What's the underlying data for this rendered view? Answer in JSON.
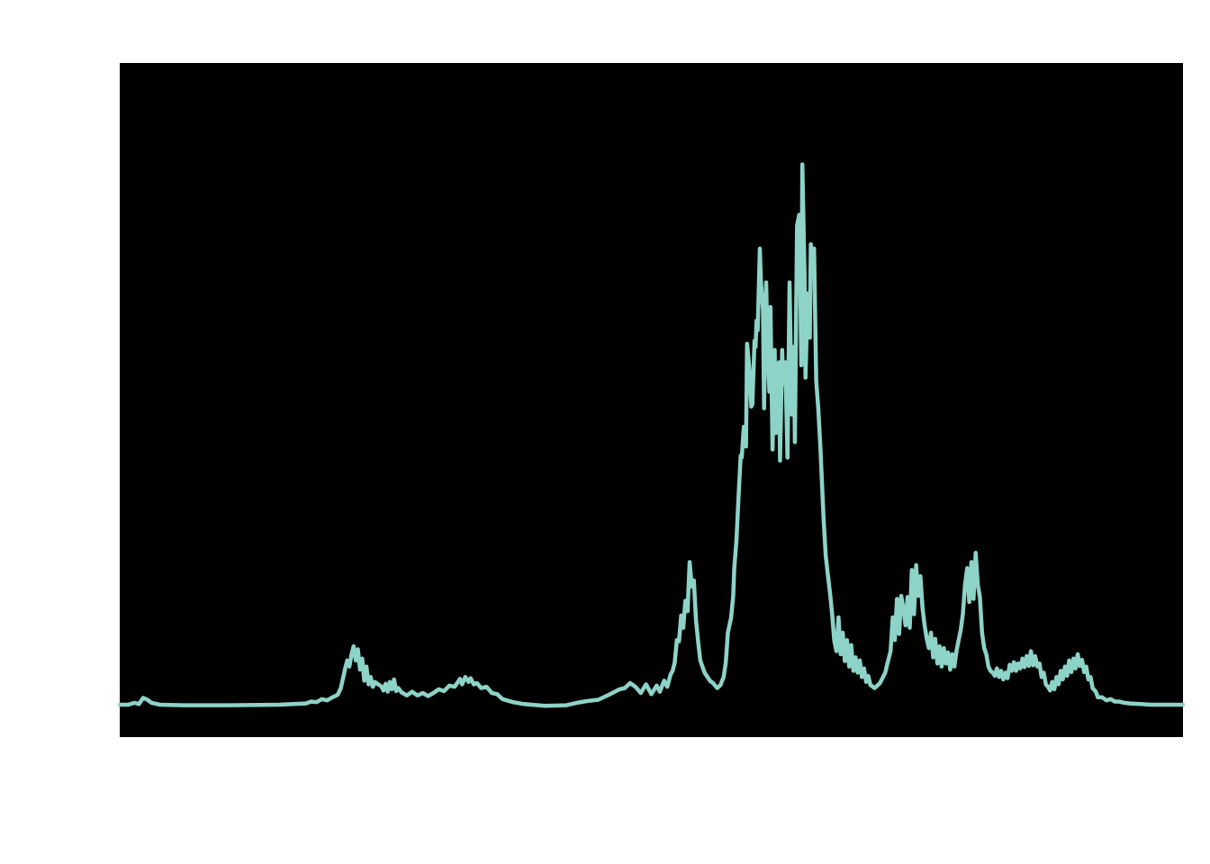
{
  "chart_data": {
    "type": "line",
    "title": "",
    "xlabel": "",
    "ylabel": "",
    "grid": false,
    "legend": "none",
    "colors": {
      "page_background": "#ffffff",
      "plot_background": "#000000",
      "line": "#8dd3c7"
    },
    "xlim": [
      0,
      1000
    ],
    "ylim": [
      0,
      1000
    ],
    "series": [
      {
        "points": [
          [
            0,
            3
          ],
          [
            8,
            3
          ],
          [
            14,
            6
          ],
          [
            18,
            4
          ],
          [
            22,
            14
          ],
          [
            26,
            11
          ],
          [
            30,
            6
          ],
          [
            38,
            3
          ],
          [
            60,
            2
          ],
          [
            100,
            2
          ],
          [
            150,
            3
          ],
          [
            175,
            5
          ],
          [
            180,
            8
          ],
          [
            185,
            7
          ],
          [
            190,
            12
          ],
          [
            195,
            10
          ],
          [
            200,
            15
          ],
          [
            205,
            19
          ],
          [
            208,
            30
          ],
          [
            210,
            46
          ],
          [
            212,
            62
          ],
          [
            214,
            75
          ],
          [
            216,
            65
          ],
          [
            218,
            85
          ],
          [
            220,
            98
          ],
          [
            222,
            75
          ],
          [
            224,
            93
          ],
          [
            226,
            60
          ],
          [
            228,
            78
          ],
          [
            230,
            42
          ],
          [
            232,
            65
          ],
          [
            234,
            36
          ],
          [
            236,
            48
          ],
          [
            238,
            32
          ],
          [
            240,
            40
          ],
          [
            243,
            36
          ],
          [
            246,
            33
          ],
          [
            248,
            26
          ],
          [
            250,
            37
          ],
          [
            252,
            24
          ],
          [
            254,
            40
          ],
          [
            256,
            28
          ],
          [
            258,
            44
          ],
          [
            260,
            25
          ],
          [
            262,
            30
          ],
          [
            265,
            23
          ],
          [
            270,
            18
          ],
          [
            275,
            24
          ],
          [
            280,
            18
          ],
          [
            285,
            22
          ],
          [
            290,
            17
          ],
          [
            295,
            22
          ],
          [
            300,
            28
          ],
          [
            305,
            25
          ],
          [
            310,
            34
          ],
          [
            315,
            32
          ],
          [
            320,
            45
          ],
          [
            322,
            36
          ],
          [
            325,
            48
          ],
          [
            328,
            40
          ],
          [
            330,
            46
          ],
          [
            333,
            36
          ],
          [
            336,
            38
          ],
          [
            340,
            30
          ],
          [
            345,
            32
          ],
          [
            350,
            22
          ],
          [
            355,
            20
          ],
          [
            360,
            12
          ],
          [
            370,
            7
          ],
          [
            380,
            4
          ],
          [
            400,
            1
          ],
          [
            420,
            2
          ],
          [
            430,
            6
          ],
          [
            440,
            9
          ],
          [
            450,
            11
          ],
          [
            460,
            19
          ],
          [
            470,
            28
          ],
          [
            475,
            30
          ],
          [
            480,
            38
          ],
          [
            485,
            32
          ],
          [
            490,
            22
          ],
          [
            495,
            36
          ],
          [
            500,
            20
          ],
          [
            505,
            34
          ],
          [
            508,
            24
          ],
          [
            512,
            42
          ],
          [
            515,
            32
          ],
          [
            518,
            52
          ],
          [
            520,
            58
          ],
          [
            522,
            72
          ],
          [
            524,
            108
          ],
          [
            526,
            106
          ],
          [
            528,
            148
          ],
          [
            530,
            128
          ],
          [
            532,
            172
          ],
          [
            534,
            155
          ],
          [
            536,
            235
          ],
          [
            538,
            195
          ],
          [
            540,
            205
          ],
          [
            542,
            140
          ],
          [
            544,
            105
          ],
          [
            546,
            75
          ],
          [
            550,
            55
          ],
          [
            555,
            42
          ],
          [
            558,
            38
          ],
          [
            562,
            30
          ],
          [
            565,
            35
          ],
          [
            568,
            48
          ],
          [
            570,
            72
          ],
          [
            572,
            120
          ],
          [
            575,
            145
          ],
          [
            577,
            180
          ],
          [
            578,
            225
          ],
          [
            580,
            270
          ],
          [
            582,
            340
          ],
          [
            584,
            408
          ],
          [
            585,
            405
          ],
          [
            587,
            455
          ],
          [
            589,
            423
          ],
          [
            590,
            590
          ],
          [
            592,
            552
          ],
          [
            594,
            488
          ],
          [
            595,
            492
          ],
          [
            597,
            595
          ],
          [
            598,
            585
          ],
          [
            599,
            628
          ],
          [
            600,
            612
          ],
          [
            602,
            745
          ],
          [
            603,
            695
          ],
          [
            605,
            645
          ],
          [
            606,
            485
          ],
          [
            608,
            690
          ],
          [
            609,
            610
          ],
          [
            611,
            512
          ],
          [
            612,
            650
          ],
          [
            614,
            418
          ],
          [
            616,
            580
          ],
          [
            617,
            445
          ],
          [
            620,
            560
          ],
          [
            621,
            400
          ],
          [
            623,
            580
          ],
          [
            624,
            525
          ],
          [
            626,
            560
          ],
          [
            628,
            405
          ],
          [
            630,
            690
          ],
          [
            632,
            475
          ],
          [
            634,
            585
          ],
          [
            635,
            430
          ],
          [
            637,
            782
          ],
          [
            639,
            800
          ],
          [
            640,
            710
          ],
          [
            641,
            555
          ],
          [
            642,
            882
          ],
          [
            644,
            702
          ],
          [
            645,
            535
          ],
          [
            647,
            672
          ],
          [
            649,
            600
          ],
          [
            650,
            752
          ],
          [
            652,
            702
          ],
          [
            653,
            745
          ],
          [
            655,
            530
          ],
          [
            657,
            485
          ],
          [
            659,
            420
          ],
          [
            662,
            305
          ],
          [
            664,
            245
          ],
          [
            666,
            215
          ],
          [
            668,
            185
          ],
          [
            670,
            150
          ],
          [
            672,
            108
          ],
          [
            674,
            90
          ],
          [
            676,
            145
          ],
          [
            678,
            85
          ],
          [
            680,
            120
          ],
          [
            682,
            74
          ],
          [
            684,
            108
          ],
          [
            686,
            65
          ],
          [
            688,
            100
          ],
          [
            690,
            58
          ],
          [
            692,
            80
          ],
          [
            694,
            55
          ],
          [
            696,
            75
          ],
          [
            698,
            48
          ],
          [
            700,
            62
          ],
          [
            702,
            40
          ],
          [
            704,
            50
          ],
          [
            706,
            35
          ],
          [
            710,
            30
          ],
          [
            715,
            38
          ],
          [
            720,
            55
          ],
          [
            722,
            70
          ],
          [
            725,
            90
          ],
          [
            727,
            145
          ],
          [
            729,
            108
          ],
          [
            731,
            175
          ],
          [
            733,
            118
          ],
          [
            735,
            180
          ],
          [
            737,
            160
          ],
          [
            739,
            132
          ],
          [
            741,
            178
          ],
          [
            743,
            128
          ],
          [
            745,
            222
          ],
          [
            747,
            150
          ],
          [
            749,
            230
          ],
          [
            751,
            180
          ],
          [
            753,
            212
          ],
          [
            755,
            160
          ],
          [
            757,
            132
          ],
          [
            759,
            110
          ],
          [
            761,
            95
          ],
          [
            763,
            120
          ],
          [
            765,
            80
          ],
          [
            767,
            110
          ],
          [
            769,
            70
          ],
          [
            771,
            98
          ],
          [
            773,
            65
          ],
          [
            775,
            95
          ],
          [
            777,
            70
          ],
          [
            779,
            88
          ],
          [
            781,
            60
          ],
          [
            783,
            85
          ],
          [
            785,
            65
          ],
          [
            787,
            90
          ],
          [
            789,
            108
          ],
          [
            791,
            125
          ],
          [
            793,
            150
          ],
          [
            795,
            198
          ],
          [
            797,
            225
          ],
          [
            799,
            170
          ],
          [
            801,
            235
          ],
          [
            803,
            175
          ],
          [
            805,
            250
          ],
          [
            807,
            198
          ],
          [
            809,
            178
          ],
          [
            811,
            120
          ],
          [
            813,
            95
          ],
          [
            815,
            85
          ],
          [
            817,
            65
          ],
          [
            819,
            58
          ],
          [
            821,
            55
          ],
          [
            823,
            50
          ],
          [
            825,
            62
          ],
          [
            827,
            48
          ],
          [
            829,
            58
          ],
          [
            831,
            44
          ],
          [
            833,
            55
          ],
          [
            835,
            46
          ],
          [
            837,
            68
          ],
          [
            839,
            58
          ],
          [
            841,
            72
          ],
          [
            843,
            58
          ],
          [
            845,
            70
          ],
          [
            847,
            62
          ],
          [
            849,
            78
          ],
          [
            851,
            64
          ],
          [
            853,
            82
          ],
          [
            855,
            66
          ],
          [
            857,
            90
          ],
          [
            859,
            67
          ],
          [
            861,
            82
          ],
          [
            863,
            65
          ],
          [
            865,
            70
          ],
          [
            867,
            48
          ],
          [
            869,
            55
          ],
          [
            871,
            36
          ],
          [
            873,
            32
          ],
          [
            875,
            26
          ],
          [
            877,
            40
          ],
          [
            879,
            28
          ],
          [
            881,
            48
          ],
          [
            883,
            36
          ],
          [
            885,
            58
          ],
          [
            887,
            44
          ],
          [
            889,
            65
          ],
          [
            891,
            50
          ],
          [
            893,
            75
          ],
          [
            895,
            56
          ],
          [
            897,
            78
          ],
          [
            899,
            62
          ],
          [
            901,
            85
          ],
          [
            903,
            66
          ],
          [
            905,
            76
          ],
          [
            907,
            56
          ],
          [
            909,
            65
          ],
          [
            911,
            44
          ],
          [
            913,
            48
          ],
          [
            915,
            30
          ],
          [
            918,
            24
          ],
          [
            920,
            15
          ],
          [
            924,
            15
          ],
          [
            928,
            10
          ],
          [
            932,
            12
          ],
          [
            936,
            8
          ],
          [
            940,
            8
          ],
          [
            945,
            6
          ],
          [
            950,
            5
          ],
          [
            960,
            4
          ],
          [
            970,
            3
          ],
          [
            985,
            3
          ],
          [
            1000,
            3
          ]
        ]
      }
    ]
  }
}
